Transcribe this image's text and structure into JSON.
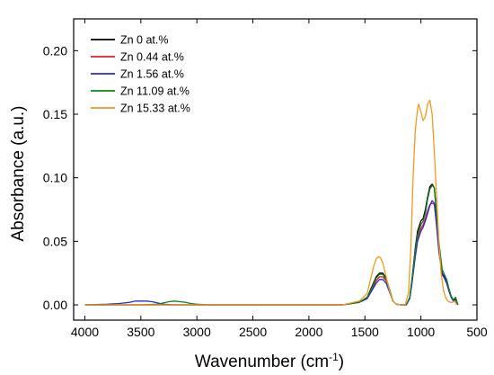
{
  "chart_data": {
    "type": "line",
    "xlabel": "Wavenumber (cm",
    "xlabel_sup": "-1",
    "xlabel_close": ")",
    "ylabel": "Absorbance (a.u.)",
    "xlim": [
      4100,
      500
    ],
    "ylim": [
      -0.012,
      0.225
    ],
    "x_reversed": true,
    "x_ticks": [
      "4000",
      "3500",
      "3000",
      "2500",
      "2000",
      "1500",
      "1000",
      "500"
    ],
    "x_tick_values": [
      4000,
      3500,
      3000,
      2500,
      2000,
      1500,
      1000,
      500
    ],
    "y_ticks": [
      "0.00",
      "0.05",
      "0.10",
      "0.15",
      "0.20"
    ],
    "y_tick_values": [
      0.0,
      0.05,
      0.1,
      0.15,
      0.2
    ],
    "grid": false,
    "legend_position": "top-left",
    "series": [
      {
        "name": "Zn 0 at.%",
        "color": "#000000",
        "x": [
          4000,
          3600,
          3000,
          2500,
          2000,
          1700,
          1550,
          1480,
          1440,
          1400,
          1370,
          1340,
          1310,
          1280,
          1250,
          1220,
          1180,
          1130,
          1100,
          1080,
          1050,
          1030,
          1000,
          980,
          960,
          940,
          920,
          900,
          880,
          860,
          840,
          810,
          790,
          770,
          750,
          730,
          710,
          690,
          670
        ],
        "y": [
          0.0,
          0.0,
          0.0,
          0.0,
          0.0,
          0.0,
          0.002,
          0.006,
          0.014,
          0.022,
          0.025,
          0.025,
          0.021,
          0.012,
          0.003,
          0.0005,
          0.0,
          0.0,
          0.006,
          0.02,
          0.045,
          0.058,
          0.066,
          0.068,
          0.075,
          0.085,
          0.093,
          0.095,
          0.092,
          0.07,
          0.045,
          0.025,
          0.022,
          0.018,
          0.012,
          0.006,
          0.003,
          0.005,
          0.0
        ]
      },
      {
        "name": "Zn 0.44 at.%",
        "color": "#e8192c",
        "x": [
          4000,
          3600,
          3000,
          2500,
          2000,
          1700,
          1550,
          1480,
          1440,
          1400,
          1370,
          1340,
          1310,
          1280,
          1250,
          1220,
          1180,
          1130,
          1100,
          1080,
          1050,
          1030,
          1000,
          980,
          960,
          940,
          920,
          900,
          880,
          860,
          840,
          810,
          790,
          770,
          750,
          730,
          710,
          690,
          670
        ],
        "y": [
          0.0,
          0.0,
          0.0,
          0.0,
          0.0,
          0.0,
          0.002,
          0.005,
          0.012,
          0.019,
          0.022,
          0.022,
          0.019,
          0.011,
          0.003,
          0.0005,
          0.0,
          0.0,
          0.005,
          0.018,
          0.04,
          0.052,
          0.06,
          0.063,
          0.068,
          0.074,
          0.079,
          0.08,
          0.079,
          0.062,
          0.042,
          0.024,
          0.021,
          0.017,
          0.011,
          0.006,
          0.003,
          0.004,
          0.0
        ]
      },
      {
        "name": "Zn 1.56 at.%",
        "color": "#2a2ad8",
        "x": [
          4000,
          3800,
          3700,
          3600,
          3550,
          3500,
          3450,
          3400,
          3350,
          3300,
          3200,
          3000,
          2500,
          2000,
          1700,
          1550,
          1480,
          1440,
          1400,
          1370,
          1340,
          1310,
          1280,
          1250,
          1220,
          1180,
          1130,
          1100,
          1080,
          1050,
          1030,
          1000,
          980,
          960,
          940,
          920,
          900,
          880,
          860,
          840,
          810,
          790,
          770,
          750,
          730,
          710,
          690,
          670
        ],
        "y": [
          0.0,
          0.0005,
          0.001,
          0.002,
          0.003,
          0.003,
          0.003,
          0.0025,
          0.0015,
          0.0005,
          0.0,
          0.0,
          0.0,
          0.0,
          0.0,
          0.002,
          0.005,
          0.011,
          0.017,
          0.02,
          0.02,
          0.017,
          0.01,
          0.003,
          0.0005,
          0.0,
          0.0,
          0.005,
          0.017,
          0.038,
          0.05,
          0.058,
          0.061,
          0.066,
          0.072,
          0.078,
          0.082,
          0.08,
          0.063,
          0.043,
          0.024,
          0.021,
          0.017,
          0.011,
          0.006,
          0.003,
          0.004,
          0.0
        ]
      },
      {
        "name": "Zn 11.09 at.%",
        "color": "#12821e",
        "x": [
          4000,
          3500,
          3350,
          3300,
          3250,
          3200,
          3150,
          3100,
          3050,
          3000,
          2900,
          2500,
          2000,
          1700,
          1550,
          1480,
          1440,
          1400,
          1370,
          1340,
          1310,
          1280,
          1250,
          1220,
          1180,
          1130,
          1100,
          1080,
          1050,
          1030,
          1000,
          980,
          960,
          940,
          920,
          900,
          880,
          860,
          840,
          810,
          790,
          770,
          750,
          730,
          710,
          690,
          670
        ],
        "y": [
          0.0,
          0.0,
          0.0005,
          0.0015,
          0.0025,
          0.003,
          0.0025,
          0.002,
          0.001,
          0.0005,
          0.0,
          0.0,
          0.0,
          0.0,
          0.002,
          0.006,
          0.013,
          0.021,
          0.024,
          0.024,
          0.02,
          0.012,
          0.003,
          0.0005,
          0.0,
          0.0,
          0.006,
          0.02,
          0.043,
          0.055,
          0.063,
          0.066,
          0.072,
          0.083,
          0.091,
          0.094,
          0.092,
          0.072,
          0.05,
          0.028,
          0.024,
          0.02,
          0.013,
          0.007,
          0.004,
          0.006,
          0.0
        ]
      },
      {
        "name": "Zn 15.33 at.%",
        "color": "#f39a1e",
        "x": [
          4000,
          3600,
          3000,
          2500,
          2000,
          1700,
          1550,
          1480,
          1450,
          1420,
          1400,
          1380,
          1360,
          1340,
          1310,
          1280,
          1250,
          1220,
          1180,
          1140,
          1110,
          1090,
          1070,
          1050,
          1030,
          1020,
          1000,
          980,
          960,
          940,
          920,
          900,
          880,
          860,
          840,
          820,
          800,
          780,
          760,
          740,
          720,
          700,
          680
        ],
        "y": [
          0.0,
          0.0,
          0.0,
          0.0,
          0.0,
          0.0,
          0.003,
          0.009,
          0.02,
          0.031,
          0.036,
          0.038,
          0.037,
          0.033,
          0.022,
          0.011,
          0.003,
          0.0005,
          0.0,
          0.0,
          0.01,
          0.045,
          0.1,
          0.138,
          0.154,
          0.158,
          0.152,
          0.145,
          0.148,
          0.158,
          0.161,
          0.15,
          0.12,
          0.085,
          0.05,
          0.025,
          0.012,
          0.006,
          0.003,
          0.002,
          0.002,
          0.003,
          0.0
        ]
      }
    ]
  }
}
